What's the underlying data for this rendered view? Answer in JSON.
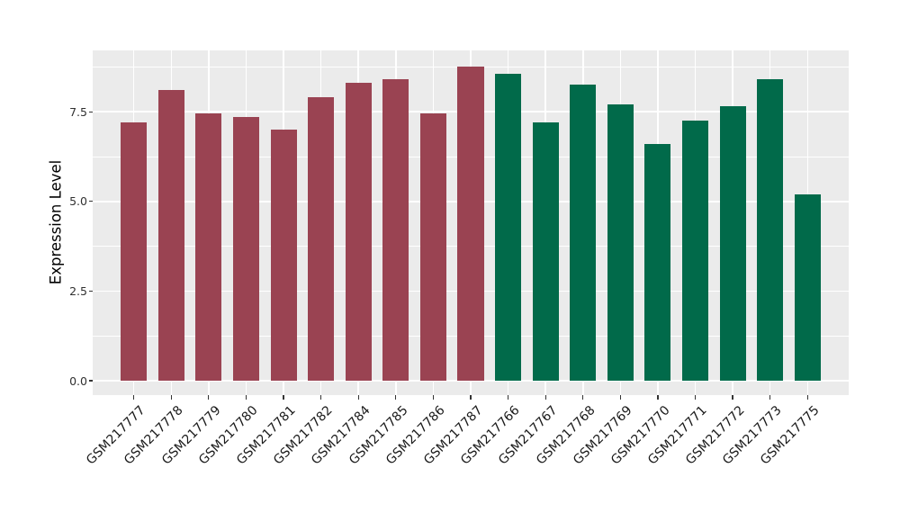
{
  "chart_data": {
    "type": "bar",
    "title": "",
    "xlabel": "",
    "ylabel": "Expression Level",
    "categories": [
      "GSM217777",
      "GSM217778",
      "GSM217779",
      "GSM217780",
      "GSM217781",
      "GSM217782",
      "GSM217784",
      "GSM217785",
      "GSM217786",
      "GSM217787",
      "GSM217766",
      "GSM217767",
      "GSM217768",
      "GSM217769",
      "GSM217770",
      "GSM217771",
      "GSM217772",
      "GSM217773",
      "GSM217775"
    ],
    "values": [
      7.2,
      8.1,
      7.45,
      7.35,
      7.0,
      7.9,
      8.3,
      8.4,
      7.45,
      8.75,
      8.55,
      7.2,
      8.25,
      7.7,
      6.6,
      7.25,
      7.65,
      8.4,
      5.2
    ],
    "bar_colors": [
      "#9A4352",
      "#9A4352",
      "#9A4352",
      "#9A4352",
      "#9A4352",
      "#9A4352",
      "#9A4352",
      "#9A4352",
      "#9A4352",
      "#9A4352",
      "#016A4A",
      "#016A4A",
      "#016A4A",
      "#016A4A",
      "#016A4A",
      "#016A4A",
      "#016A4A",
      "#016A4A",
      "#016A4A"
    ],
    "ylim": [
      -0.4,
      9.21
    ],
    "bar_width_fraction": 0.7,
    "y_ticks": [
      {
        "value": 0,
        "label": "0.0"
      },
      {
        "value": 2.5,
        "label": "2.5"
      },
      {
        "value": 5,
        "label": "5.0"
      },
      {
        "value": 7.5,
        "label": "7.5"
      }
    ],
    "y_minor_ticks": [
      1.25,
      3.75,
      6.25,
      8.75
    ],
    "grid": "on",
    "legend": "none",
    "panel_bg": "#EBEBEB",
    "grid_color": "#FFFFFF"
  }
}
